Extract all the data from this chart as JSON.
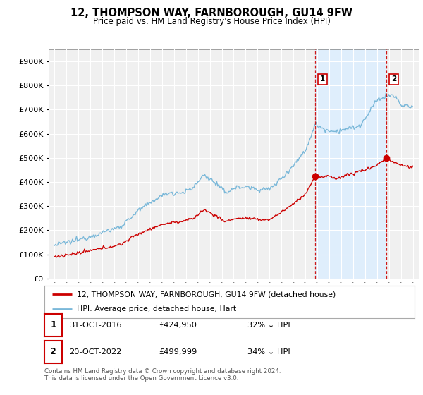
{
  "title": "12, THOMPSON WAY, FARNBOROUGH, GU14 9FW",
  "subtitle": "Price paid vs. HM Land Registry's House Price Index (HPI)",
  "legend_line1": "12, THOMPSON WAY, FARNBOROUGH, GU14 9FW (detached house)",
  "legend_line2": "HPI: Average price, detached house, Hart",
  "sale1_date": "31-OCT-2016",
  "sale1_price": "£424,950",
  "sale1_hpi": "32% ↓ HPI",
  "sale1_year": 2016.83,
  "sale1_value": 424950,
  "sale2_date": "20-OCT-2022",
  "sale2_price": "£499,999",
  "sale2_hpi": "34% ↓ HPI",
  "sale2_year": 2022.8,
  "sale2_value": 499999,
  "footer": "Contains HM Land Registry data © Crown copyright and database right 2024.\nThis data is licensed under the Open Government Licence v3.0.",
  "red_color": "#cc0000",
  "blue_color": "#7ab8d9",
  "shade_color": "#ddeeff",
  "dashed_color": "#cc0000",
  "ylim_min": 0,
  "ylim_max": 950000,
  "xlim_min": 1994.5,
  "xlim_max": 2025.5,
  "background_color": "#ffffff",
  "plot_bg_color": "#f0f0f0"
}
